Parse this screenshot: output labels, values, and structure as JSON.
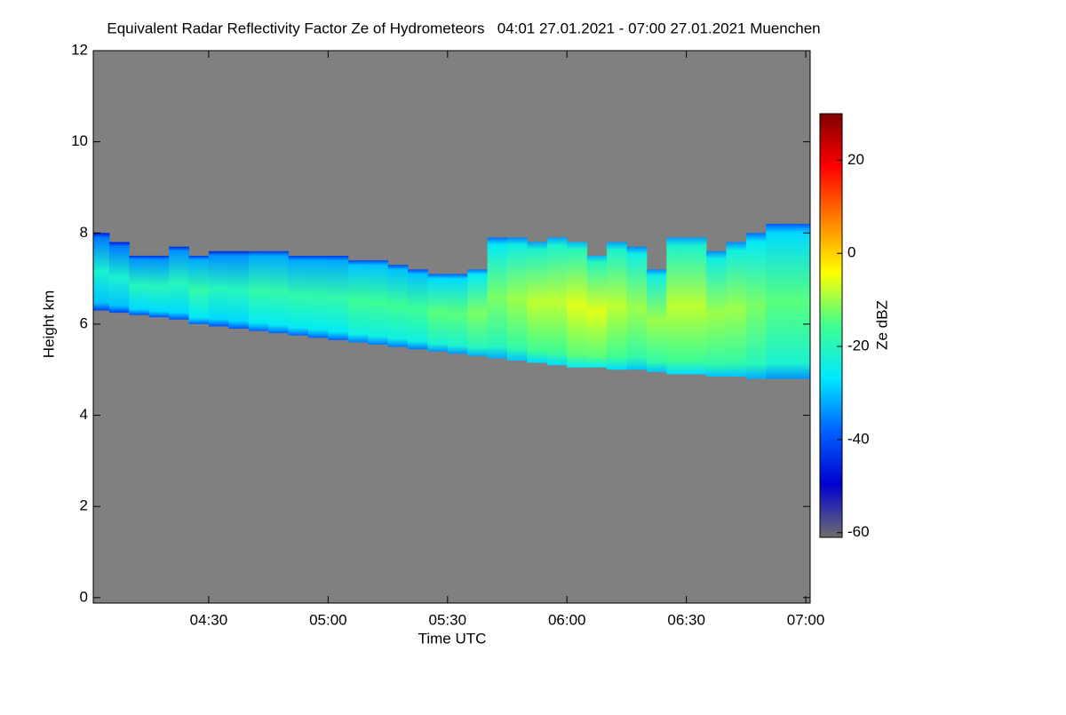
{
  "chart_data": {
    "type": "radar",
    "title": "Equivalent Radar Reflectivity Factor Ze of Hydrometeors   04:01 27.01.2021 - 07:00 27.01.2021 Muenchen",
    "x_label": "Time UTC",
    "y_label": "Height km",
    "colorbar_label": "Ze dBZ",
    "background": "#808080",
    "colormap": [
      "#6e6e6e",
      "#0000d0",
      "#0060ff",
      "#00e8ff",
      "#40ff90",
      "#ffff00",
      "#ff8000",
      "#ff0000",
      "#800000"
    ],
    "x": [
      4.0167,
      4.0833,
      4.1667,
      4.25,
      4.3333,
      4.4167,
      4.5,
      4.5833,
      4.6667,
      4.75,
      4.8333,
      4.9167,
      5,
      5.0833,
      5.1667,
      5.25,
      5.3333,
      5.4167,
      5.5,
      5.5833,
      5.6667,
      5.75,
      5.8333,
      5.9167,
      6,
      6.0833,
      6.1667,
      6.25,
      6.3333,
      6.4167,
      6.5,
      6.5833,
      6.6667,
      6.75,
      6.8333,
      6.9167
    ],
    "cloud_top": [
      8.0,
      7.8,
      7.5,
      7.5,
      7.7,
      7.5,
      7.6,
      7.6,
      7.6,
      7.6,
      7.5,
      7.5,
      7.5,
      7.4,
      7.4,
      7.3,
      7.2,
      7.1,
      7.1,
      7.2,
      7.9,
      7.9,
      7.8,
      7.9,
      7.8,
      7.5,
      7.8,
      7.7,
      7.2,
      7.9,
      7.9,
      7.6,
      7.8,
      8.0,
      8.2,
      8.2
    ],
    "cloud_base": [
      6.3,
      6.25,
      6.2,
      6.15,
      6.1,
      6.0,
      5.95,
      5.9,
      5.85,
      5.8,
      5.75,
      5.7,
      5.65,
      5.6,
      5.55,
      5.5,
      5.45,
      5.4,
      5.35,
      5.3,
      5.25,
      5.2,
      5.15,
      5.1,
      5.05,
      5.05,
      5.0,
      5.0,
      4.95,
      4.9,
      4.9,
      4.85,
      4.85,
      4.8,
      4.8,
      4.8
    ],
    "ze": [
      -22,
      -22,
      -20,
      -20,
      -20,
      -18,
      -20,
      -20,
      -18,
      -18,
      -18,
      -18,
      -18,
      -16,
      -16,
      -16,
      -16,
      -14,
      -14,
      -12,
      -12,
      -10,
      -8,
      -8,
      -6,
      -6,
      -8,
      -10,
      -10,
      -8,
      -8,
      -10,
      -10,
      -12,
      -14,
      -14
    ],
    "xlim": [
      4.0167,
      7.0183
    ],
    "xticks": [
      {
        "value": 4.5,
        "label": "04:30"
      },
      {
        "value": 5,
        "label": "05:00"
      },
      {
        "value": 5.5,
        "label": "05:30"
      },
      {
        "value": 6,
        "label": "06:00"
      },
      {
        "value": 6.5,
        "label": "06:30"
      },
      {
        "value": 7,
        "label": "07:00"
      }
    ],
    "ylim": [
      -0.12,
      12
    ],
    "yticks": [
      0,
      2,
      4,
      6,
      8,
      10,
      12
    ],
    "clim": [
      -61,
      30
    ],
    "cticks": [
      20,
      0,
      -20,
      -40,
      -60
    ]
  }
}
